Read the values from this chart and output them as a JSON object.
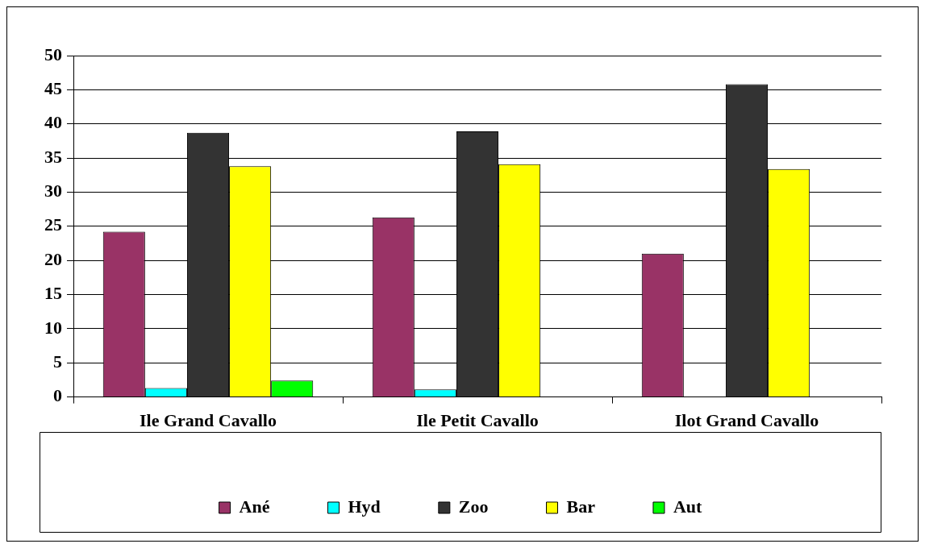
{
  "chart_data": {
    "type": "bar",
    "categories": [
      "Ile Grand Cavallo",
      "Ile Petit Cavallo",
      "Ilot Grand Cavallo"
    ],
    "series": [
      {
        "name": "Ané",
        "color": "#993366",
        "values": [
          24.2,
          26.3,
          21.0
        ]
      },
      {
        "name": "Hyd",
        "color": "#00ffff",
        "values": [
          1.3,
          1.1,
          null
        ]
      },
      {
        "name": "Zoo",
        "color": "#333333",
        "values": [
          38.7,
          38.9,
          45.8
        ]
      },
      {
        "name": "Bar",
        "color": "#ffff00",
        "values": [
          33.8,
          34.1,
          33.4
        ]
      },
      {
        "name": "Aut",
        "color": "#00ff00",
        "values": [
          2.4,
          null,
          null
        ]
      }
    ],
    "ylim": [
      0,
      50
    ],
    "yticks": [
      0,
      5,
      10,
      15,
      20,
      25,
      30,
      35,
      40,
      45,
      50
    ],
    "grid": "y",
    "legend": "bottom"
  }
}
